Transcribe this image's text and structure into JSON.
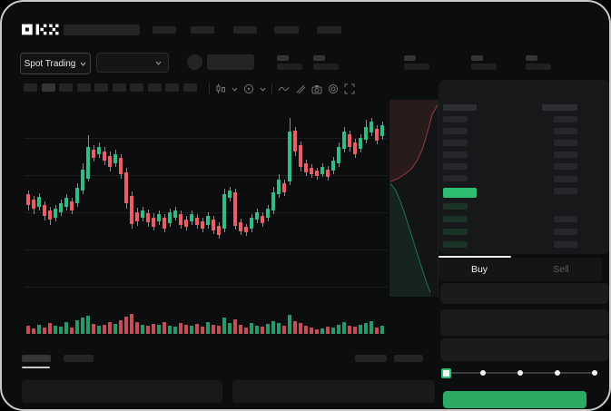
{
  "nav": {
    "logo_text": "OKX"
  },
  "market_selector": {
    "label": "Spot Trading"
  },
  "chart_toolbar": {
    "icons": [
      "candle-style-icon",
      "chevron-down-icon",
      "indicator-icon",
      "chevron-down-icon",
      "wave-icon",
      "brush-icon",
      "camera-icon",
      "settings-icon",
      "fullscreen-icon"
    ]
  },
  "orderbook": {
    "view_icons": [
      "orderbook-split-view-icon",
      "orderbook-bids-view-icon",
      "orderbook-asks-view-icon"
    ],
    "left_upper_levels": 6,
    "left_lower_levels": 4,
    "right_upper_levels": 7,
    "right_lower_levels": 3,
    "last_price_highlight_color": "#2fbe71"
  },
  "trade_panel": {
    "tabs": {
      "buy": "Buy",
      "sell": "Sell"
    },
    "active_tab": "Buy",
    "slider_steps": 5,
    "slider_position": 0
  },
  "colors": {
    "up": "#2ebd85",
    "down": "#ee5c66",
    "volume_up": "#2aa875",
    "volume_down": "#d8545e",
    "accent_green": "#2fbe71",
    "buy_button": "#2cab63"
  },
  "chart_data": {
    "type": "candlestick",
    "note": "No axis labels are visible in the screenshot; OHLC values are in normalized chart units read from pixel positions.",
    "price_range": [
      0,
      206
    ],
    "grid_horizontal_lines": 5,
    "has_volume_pane": true,
    "has_depth_side_pane": true,
    "columns": [
      "open",
      "high",
      "low",
      "close",
      "volume"
    ],
    "ohlcv": [
      [
        122,
        126,
        104,
        110,
        9
      ],
      [
        116,
        120,
        100,
        106,
        6
      ],
      [
        108,
        123,
        104,
        119,
        10
      ],
      [
        110,
        114,
        93,
        98,
        7
      ],
      [
        104,
        108,
        88,
        94,
        12
      ],
      [
        96,
        110,
        92,
        106,
        9
      ],
      [
        102,
        116,
        98,
        112,
        8
      ],
      [
        108,
        122,
        104,
        118,
        13
      ],
      [
        114,
        118,
        100,
        104,
        7
      ],
      [
        112,
        134,
        108,
        129,
        15
      ],
      [
        126,
        156,
        122,
        149,
        18
      ],
      [
        139,
        187,
        136,
        174,
        20
      ],
      [
        171,
        176,
        158,
        162,
        11
      ],
      [
        166,
        179,
        162,
        174,
        9
      ],
      [
        169,
        174,
        154,
        159,
        10
      ],
      [
        164,
        169,
        147,
        152,
        13
      ],
      [
        156,
        171,
        152,
        166,
        11
      ],
      [
        162,
        166,
        139,
        144,
        15
      ],
      [
        146,
        151,
        106,
        112,
        19
      ],
      [
        120,
        125,
        84,
        89,
        22
      ],
      [
        102,
        107,
        87,
        92,
        13
      ],
      [
        96,
        108,
        92,
        104,
        10
      ],
      [
        101,
        105,
        86,
        91,
        9
      ],
      [
        96,
        101,
        82,
        86,
        11
      ],
      [
        92,
        104,
        88,
        100,
        10
      ],
      [
        96,
        100,
        80,
        84,
        13
      ],
      [
        90,
        106,
        86,
        102,
        9
      ],
      [
        96,
        108,
        93,
        104,
        8
      ],
      [
        100,
        104,
        84,
        88,
        12
      ],
      [
        94,
        98,
        82,
        86,
        10
      ],
      [
        92,
        104,
        88,
        100,
        9
      ],
      [
        96,
        100,
        84,
        88,
        11
      ],
      [
        92,
        96,
        80,
        84,
        8
      ],
      [
        88,
        102,
        84,
        98,
        13
      ],
      [
        94,
        98,
        78,
        82,
        10
      ],
      [
        87,
        91,
        73,
        77,
        9
      ],
      [
        84,
        128,
        80,
        122,
        18
      ],
      [
        118,
        130,
        114,
        126,
        12
      ],
      [
        124,
        128,
        83,
        87,
        16
      ],
      [
        91,
        95,
        77,
        81,
        10
      ],
      [
        86,
        89,
        76,
        80,
        7
      ],
      [
        84,
        100,
        80,
        96,
        12
      ],
      [
        94,
        106,
        90,
        102,
        9
      ],
      [
        98,
        102,
        86,
        90,
        8
      ],
      [
        96,
        110,
        92,
        106,
        11
      ],
      [
        104,
        130,
        100,
        124,
        14
      ],
      [
        122,
        144,
        118,
        138,
        12
      ],
      [
        134,
        138,
        120,
        124,
        9
      ],
      [
        136,
        206,
        132,
        191,
        21
      ],
      [
        192,
        196,
        164,
        169,
        14
      ],
      [
        176,
        180,
        147,
        152,
        12
      ],
      [
        156,
        160,
        142,
        146,
        9
      ],
      [
        151,
        155,
        140,
        144,
        7
      ],
      [
        148,
        151,
        138,
        142,
        5
      ],
      [
        144,
        156,
        141,
        152,
        6
      ],
      [
        149,
        153,
        137,
        141,
        8
      ],
      [
        148,
        163,
        144,
        159,
        7
      ],
      [
        156,
        179,
        152,
        174,
        10
      ],
      [
        172,
        196,
        168,
        191,
        13
      ],
      [
        188,
        192,
        169,
        174,
        9
      ],
      [
        179,
        183,
        162,
        166,
        8
      ],
      [
        172,
        188,
        168,
        184,
        10
      ],
      [
        182,
        204,
        178,
        196,
        12
      ],
      [
        190,
        206,
        186,
        202,
        14
      ],
      [
        194,
        198,
        177,
        181,
        7
      ],
      [
        186,
        202,
        182,
        198,
        9
      ]
    ]
  }
}
